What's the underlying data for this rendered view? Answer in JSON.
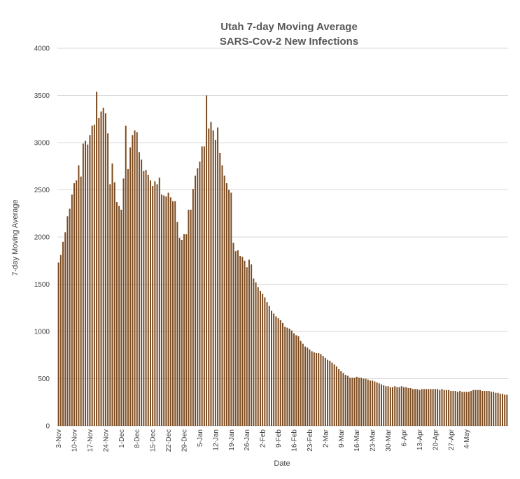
{
  "chart_data": {
    "type": "bar",
    "title": "Utah 7-day Moving Average",
    "subtitle": "SARS-Cov-2 New Infections",
    "xlabel": "Date",
    "ylabel": "7-day Moving Average",
    "ylim": [
      0,
      4000
    ],
    "yticks": [
      0,
      500,
      1000,
      1500,
      2000,
      2500,
      3000,
      3500,
      4000
    ],
    "grid": true,
    "bar_color": "#7b4a1e",
    "x_tick_labels": [
      "3-Nov",
      "10-Nov",
      "17-Nov",
      "24-Nov",
      "1-Dec",
      "8-Dec",
      "15-Dec",
      "22-Dec",
      "29-Dec",
      "5-Jan",
      "12-Jan",
      "19-Jan",
      "26-Jan",
      "2-Feb",
      "9-Feb",
      "16-Feb",
      "23-Feb",
      "2-Mar",
      "9-Mar",
      "16-Mar",
      "23-Mar",
      "30-Mar",
      "6-Apr",
      "13-Apr",
      "20-Apr",
      "27-Apr",
      "4-May"
    ],
    "values": [
      1730,
      1810,
      1950,
      2050,
      2220,
      2300,
      2450,
      2570,
      2600,
      2760,
      2640,
      2990,
      3020,
      2980,
      3080,
      3180,
      3190,
      3540,
      3260,
      3330,
      3370,
      3310,
      3100,
      2560,
      2780,
      2580,
      2370,
      2330,
      2290,
      2620,
      3180,
      2720,
      2950,
      3080,
      3130,
      3110,
      2900,
      2820,
      2700,
      2710,
      2660,
      2600,
      2540,
      2590,
      2560,
      2630,
      2450,
      2440,
      2430,
      2470,
      2420,
      2380,
      2380,
      2160,
      1990,
      1970,
      2030,
      2030,
      2290,
      2290,
      2510,
      2650,
      2730,
      2800,
      2960,
      2960,
      3500,
      3150,
      3220,
      3130,
      3030,
      3160,
      2890,
      2760,
      2650,
      2570,
      2500,
      2470,
      1940,
      1850,
      1860,
      1800,
      1790,
      1750,
      1680,
      1760,
      1710,
      1560,
      1520,
      1470,
      1430,
      1400,
      1360,
      1310,
      1270,
      1220,
      1190,
      1160,
      1140,
      1120,
      1090,
      1050,
      1040,
      1030,
      1010,
      980,
      960,
      950,
      900,
      870,
      840,
      830,
      810,
      790,
      780,
      770,
      770,
      760,
      740,
      720,
      700,
      690,
      670,
      650,
      630,
      600,
      580,
      560,
      540,
      530,
      510,
      510,
      510,
      520,
      510,
      510,
      500,
      500,
      490,
      480,
      480,
      470,
      460,
      450,
      440,
      430,
      420,
      420,
      410,
      410,
      420,
      410,
      410,
      420,
      410,
      410,
      400,
      400,
      390,
      390,
      390,
      380,
      390,
      390,
      390,
      390,
      390,
      390,
      390,
      390,
      380,
      390,
      380,
      380,
      380,
      370,
      370,
      370,
      360,
      370,
      360,
      360,
      360,
      360,
      370,
      380,
      380,
      380,
      380,
      370,
      370,
      370,
      370,
      360,
      360,
      350,
      350,
      340,
      340,
      330,
      330
    ]
  }
}
